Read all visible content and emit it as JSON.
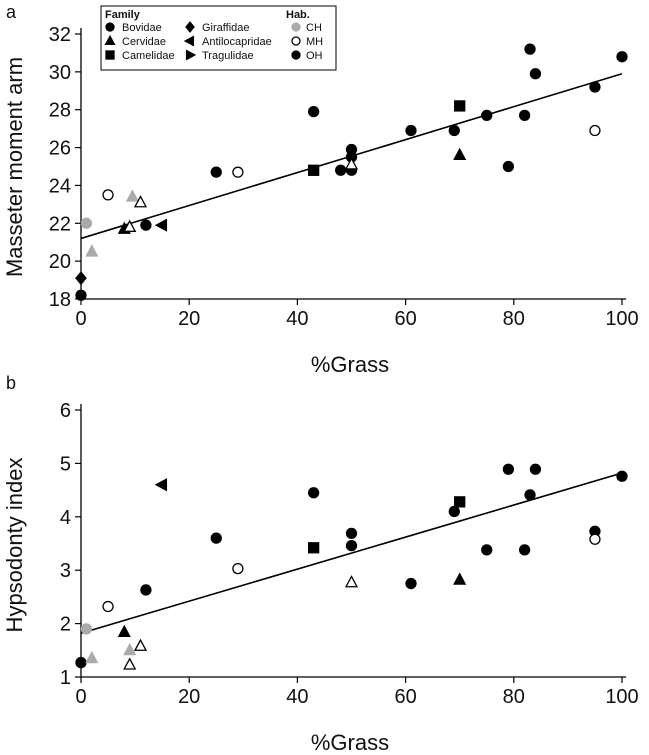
{
  "colors": {
    "OH": "#000000",
    "CH": "#aaaaaa",
    "MH": "#ffffff"
  },
  "legend": {
    "family_title": "Family",
    "hab_title": "Hab.",
    "families": [
      {
        "name": "Bovidae",
        "marker": "circle"
      },
      {
        "name": "Cervidae",
        "marker": "triangle"
      },
      {
        "name": "Camelidae",
        "marker": "square"
      },
      {
        "name": "Giraffidae",
        "marker": "diamond"
      },
      {
        "name": "Antilocapridae",
        "marker": "left-triangle"
      },
      {
        "name": "Tragulidae",
        "marker": "right-triangle"
      }
    ],
    "habitats": [
      {
        "name": "CH",
        "style": "gray-filled"
      },
      {
        "name": "MH",
        "style": "open"
      },
      {
        "name": "OH",
        "style": "black-filled"
      }
    ]
  },
  "chart_data": [
    {
      "panel_label": "a",
      "type": "scatter",
      "xlabel": "%Grass",
      "ylabel": "Masseter moment arm",
      "xlim": [
        0,
        100
      ],
      "ylim": [
        18,
        32
      ],
      "xticks": [
        0,
        20,
        40,
        60,
        80,
        100
      ],
      "yticks": [
        18,
        20,
        22,
        24,
        26,
        28,
        30,
        32
      ],
      "fit_line": {
        "x": [
          0,
          100
        ],
        "y": [
          21.2,
          29.9
        ]
      },
      "points": [
        {
          "x": 0,
          "y": 18.2,
          "m": "circle",
          "h": "OH"
        },
        {
          "x": 0,
          "y": 19.1,
          "m": "diamond",
          "h": "OH"
        },
        {
          "x": 1,
          "y": 22.0,
          "m": "circle",
          "h": "CH"
        },
        {
          "x": 2,
          "y": 20.5,
          "m": "triangle",
          "h": "CH"
        },
        {
          "x": 5,
          "y": 23.5,
          "m": "circle",
          "h": "MH"
        },
        {
          "x": 8,
          "y": 21.7,
          "m": "triangle",
          "h": "OH"
        },
        {
          "x": 9,
          "y": 21.8,
          "m": "triangle",
          "h": "MH"
        },
        {
          "x": 9.5,
          "y": 23.4,
          "m": "triangle",
          "h": "CH"
        },
        {
          "x": 11,
          "y": 23.1,
          "m": "triangle",
          "h": "MH"
        },
        {
          "x": 12,
          "y": 21.9,
          "m": "circle",
          "h": "OH"
        },
        {
          "x": 15,
          "y": 21.9,
          "m": "left-triangle",
          "h": "OH"
        },
        {
          "x": 25,
          "y": 24.7,
          "m": "circle",
          "h": "OH"
        },
        {
          "x": 29,
          "y": 24.7,
          "m": "circle",
          "h": "MH"
        },
        {
          "x": 43,
          "y": 27.9,
          "m": "circle",
          "h": "OH"
        },
        {
          "x": 43,
          "y": 24.8,
          "m": "square",
          "h": "OH"
        },
        {
          "x": 48,
          "y": 24.8,
          "m": "circle",
          "h": "OH"
        },
        {
          "x": 50,
          "y": 24.8,
          "m": "circle",
          "h": "OH"
        },
        {
          "x": 50,
          "y": 25.5,
          "m": "circle",
          "h": "OH"
        },
        {
          "x": 50,
          "y": 25.9,
          "m": "circle",
          "h": "OH"
        },
        {
          "x": 50,
          "y": 25.1,
          "m": "triangle",
          "h": "MH"
        },
        {
          "x": 61,
          "y": 26.9,
          "m": "circle",
          "h": "OH"
        },
        {
          "x": 69,
          "y": 26.9,
          "m": "circle",
          "h": "OH"
        },
        {
          "x": 70,
          "y": 28.2,
          "m": "square",
          "h": "OH"
        },
        {
          "x": 70,
          "y": 25.6,
          "m": "triangle",
          "h": "OH"
        },
        {
          "x": 75,
          "y": 27.7,
          "m": "circle",
          "h": "OH"
        },
        {
          "x": 79,
          "y": 25.0,
          "m": "circle",
          "h": "OH"
        },
        {
          "x": 82,
          "y": 27.7,
          "m": "circle",
          "h": "OH"
        },
        {
          "x": 83,
          "y": 31.2,
          "m": "circle",
          "h": "OH"
        },
        {
          "x": 84,
          "y": 29.9,
          "m": "circle",
          "h": "OH"
        },
        {
          "x": 95,
          "y": 29.2,
          "m": "circle",
          "h": "OH"
        },
        {
          "x": 95,
          "y": 26.9,
          "m": "circle",
          "h": "MH"
        },
        {
          "x": 100,
          "y": 30.8,
          "m": "circle",
          "h": "OH"
        }
      ]
    },
    {
      "panel_label": "b",
      "type": "scatter",
      "xlabel": "%Grass",
      "ylabel": "Hypsodonty index",
      "xlim": [
        0,
        100
      ],
      "ylim": [
        1,
        6
      ],
      "xticks": [
        0,
        20,
        40,
        60,
        80,
        100
      ],
      "yticks": [
        1,
        2,
        3,
        4,
        5,
        6
      ],
      "fit_line": {
        "x": [
          0,
          100
        ],
        "y": [
          1.82,
          4.82
        ]
      },
      "points": [
        {
          "x": 0,
          "y": 1.27,
          "m": "circle",
          "h": "OH"
        },
        {
          "x": 1,
          "y": 1.9,
          "m": "circle",
          "h": "CH"
        },
        {
          "x": 2,
          "y": 1.35,
          "m": "triangle",
          "h": "CH"
        },
        {
          "x": 5,
          "y": 2.32,
          "m": "circle",
          "h": "MH"
        },
        {
          "x": 8,
          "y": 1.84,
          "m": "triangle",
          "h": "OH"
        },
        {
          "x": 9,
          "y": 1.5,
          "m": "triangle",
          "h": "CH"
        },
        {
          "x": 9,
          "y": 1.23,
          "m": "triangle",
          "h": "MH"
        },
        {
          "x": 11,
          "y": 1.58,
          "m": "triangle",
          "h": "MH"
        },
        {
          "x": 12,
          "y": 2.63,
          "m": "circle",
          "h": "OH"
        },
        {
          "x": 15,
          "y": 4.6,
          "m": "left-triangle",
          "h": "OH"
        },
        {
          "x": 25,
          "y": 3.6,
          "m": "circle",
          "h": "OH"
        },
        {
          "x": 29,
          "y": 3.03,
          "m": "circle",
          "h": "MH"
        },
        {
          "x": 43,
          "y": 4.45,
          "m": "circle",
          "h": "OH"
        },
        {
          "x": 43,
          "y": 3.42,
          "m": "square",
          "h": "OH"
        },
        {
          "x": 50,
          "y": 3.69,
          "m": "circle",
          "h": "OH"
        },
        {
          "x": 50,
          "y": 3.46,
          "m": "circle",
          "h": "OH"
        },
        {
          "x": 50,
          "y": 2.77,
          "m": "triangle",
          "h": "MH"
        },
        {
          "x": 61,
          "y": 2.75,
          "m": "circle",
          "h": "OH"
        },
        {
          "x": 69,
          "y": 4.1,
          "m": "circle",
          "h": "OH"
        },
        {
          "x": 70,
          "y": 4.28,
          "m": "square",
          "h": "OH"
        },
        {
          "x": 70,
          "y": 2.82,
          "m": "triangle",
          "h": "OH"
        },
        {
          "x": 75,
          "y": 3.38,
          "m": "circle",
          "h": "OH"
        },
        {
          "x": 79,
          "y": 4.89,
          "m": "circle",
          "h": "OH"
        },
        {
          "x": 82,
          "y": 3.38,
          "m": "circle",
          "h": "OH"
        },
        {
          "x": 83,
          "y": 4.41,
          "m": "circle",
          "h": "OH"
        },
        {
          "x": 84,
          "y": 4.89,
          "m": "circle",
          "h": "OH"
        },
        {
          "x": 95,
          "y": 3.73,
          "m": "circle",
          "h": "OH"
        },
        {
          "x": 95,
          "y": 3.58,
          "m": "circle",
          "h": "MH"
        },
        {
          "x": 100,
          "y": 4.76,
          "m": "circle",
          "h": "OH"
        }
      ]
    }
  ]
}
